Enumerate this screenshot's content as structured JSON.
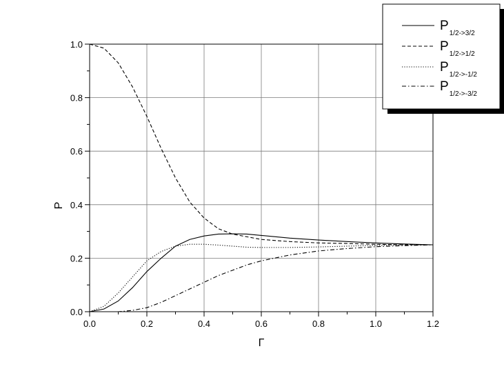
{
  "chart_data": {
    "type": "line",
    "xlabel": "Γ",
    "ylabel": "P",
    "xlim": [
      0.0,
      1.2
    ],
    "ylim": [
      0.0,
      1.0
    ],
    "xticks": [
      "0.0",
      "0.2",
      "0.4",
      "0.6",
      "0.8",
      "1.0",
      "1.2"
    ],
    "yticks": [
      "0.0",
      "0.2",
      "0.4",
      "0.6",
      "0.8",
      "1.0"
    ],
    "grid": true,
    "legend_position": "top-right",
    "series": [
      {
        "name_main": "P",
        "name_sub": "1/2->3/2",
        "style": "solid",
        "x": [
          0.0,
          0.05,
          0.1,
          0.15,
          0.2,
          0.25,
          0.3,
          0.35,
          0.4,
          0.45,
          0.5,
          0.55,
          0.6,
          0.7,
          0.8,
          0.9,
          1.0,
          1.1,
          1.2
        ],
        "y": [
          0.0,
          0.01,
          0.04,
          0.09,
          0.15,
          0.2,
          0.245,
          0.27,
          0.283,
          0.29,
          0.291,
          0.29,
          0.285,
          0.275,
          0.268,
          0.262,
          0.257,
          0.253,
          0.25
        ]
      },
      {
        "name_main": "P",
        "name_sub": "1/2->1/2",
        "style": "dashed",
        "x": [
          0.0,
          0.05,
          0.1,
          0.15,
          0.2,
          0.25,
          0.3,
          0.35,
          0.4,
          0.45,
          0.5,
          0.55,
          0.6,
          0.7,
          0.8,
          0.9,
          1.0,
          1.1,
          1.2
        ],
        "y": [
          1.0,
          0.985,
          0.93,
          0.84,
          0.73,
          0.61,
          0.5,
          0.41,
          0.35,
          0.31,
          0.29,
          0.28,
          0.27,
          0.262,
          0.257,
          0.255,
          0.252,
          0.25,
          0.25
        ]
      },
      {
        "name_main": "P",
        "name_sub": "1/2->-1/2",
        "style": "dotted",
        "x": [
          0.0,
          0.05,
          0.1,
          0.15,
          0.2,
          0.25,
          0.3,
          0.35,
          0.4,
          0.45,
          0.5,
          0.55,
          0.6,
          0.7,
          0.8,
          0.9,
          1.0,
          1.1,
          1.2
        ],
        "y": [
          0.0,
          0.02,
          0.07,
          0.13,
          0.19,
          0.225,
          0.245,
          0.252,
          0.252,
          0.249,
          0.245,
          0.241,
          0.24,
          0.24,
          0.242,
          0.245,
          0.248,
          0.25,
          0.25
        ]
      },
      {
        "name_main": "P",
        "name_sub": "1/2->-3/2",
        "style": "dashdot",
        "x": [
          0.0,
          0.1,
          0.15,
          0.2,
          0.25,
          0.3,
          0.35,
          0.4,
          0.45,
          0.5,
          0.55,
          0.6,
          0.7,
          0.8,
          0.9,
          1.0,
          1.1,
          1.2
        ],
        "y": [
          0.0,
          0.0,
          0.005,
          0.015,
          0.035,
          0.06,
          0.085,
          0.11,
          0.135,
          0.155,
          0.175,
          0.19,
          0.212,
          0.227,
          0.236,
          0.243,
          0.247,
          0.25
        ]
      }
    ]
  }
}
